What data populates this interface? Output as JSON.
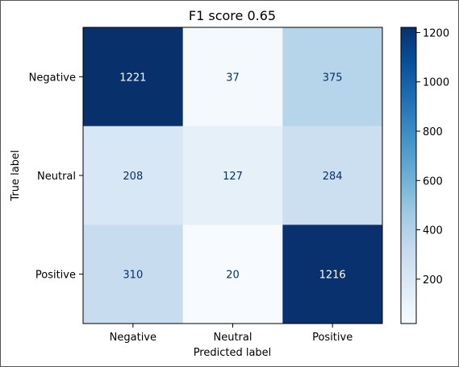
{
  "chart_data": {
    "type": "heatmap",
    "title": "F1 score 0.65",
    "xlabel": "Predicted label",
    "ylabel": "True label",
    "x_categories": [
      "Negative",
      "Neutral",
      "Positive"
    ],
    "y_categories": [
      "Negative",
      "Neutral",
      "Positive"
    ],
    "values": [
      [
        1221,
        37,
        375
      ],
      [
        208,
        127,
        284
      ],
      [
        310,
        20,
        1216
      ]
    ],
    "colormap": "Blues",
    "colorbar": {
      "range": [
        20,
        1221
      ],
      "ticks": [
        200,
        400,
        600,
        800,
        1000,
        1200
      ]
    }
  }
}
